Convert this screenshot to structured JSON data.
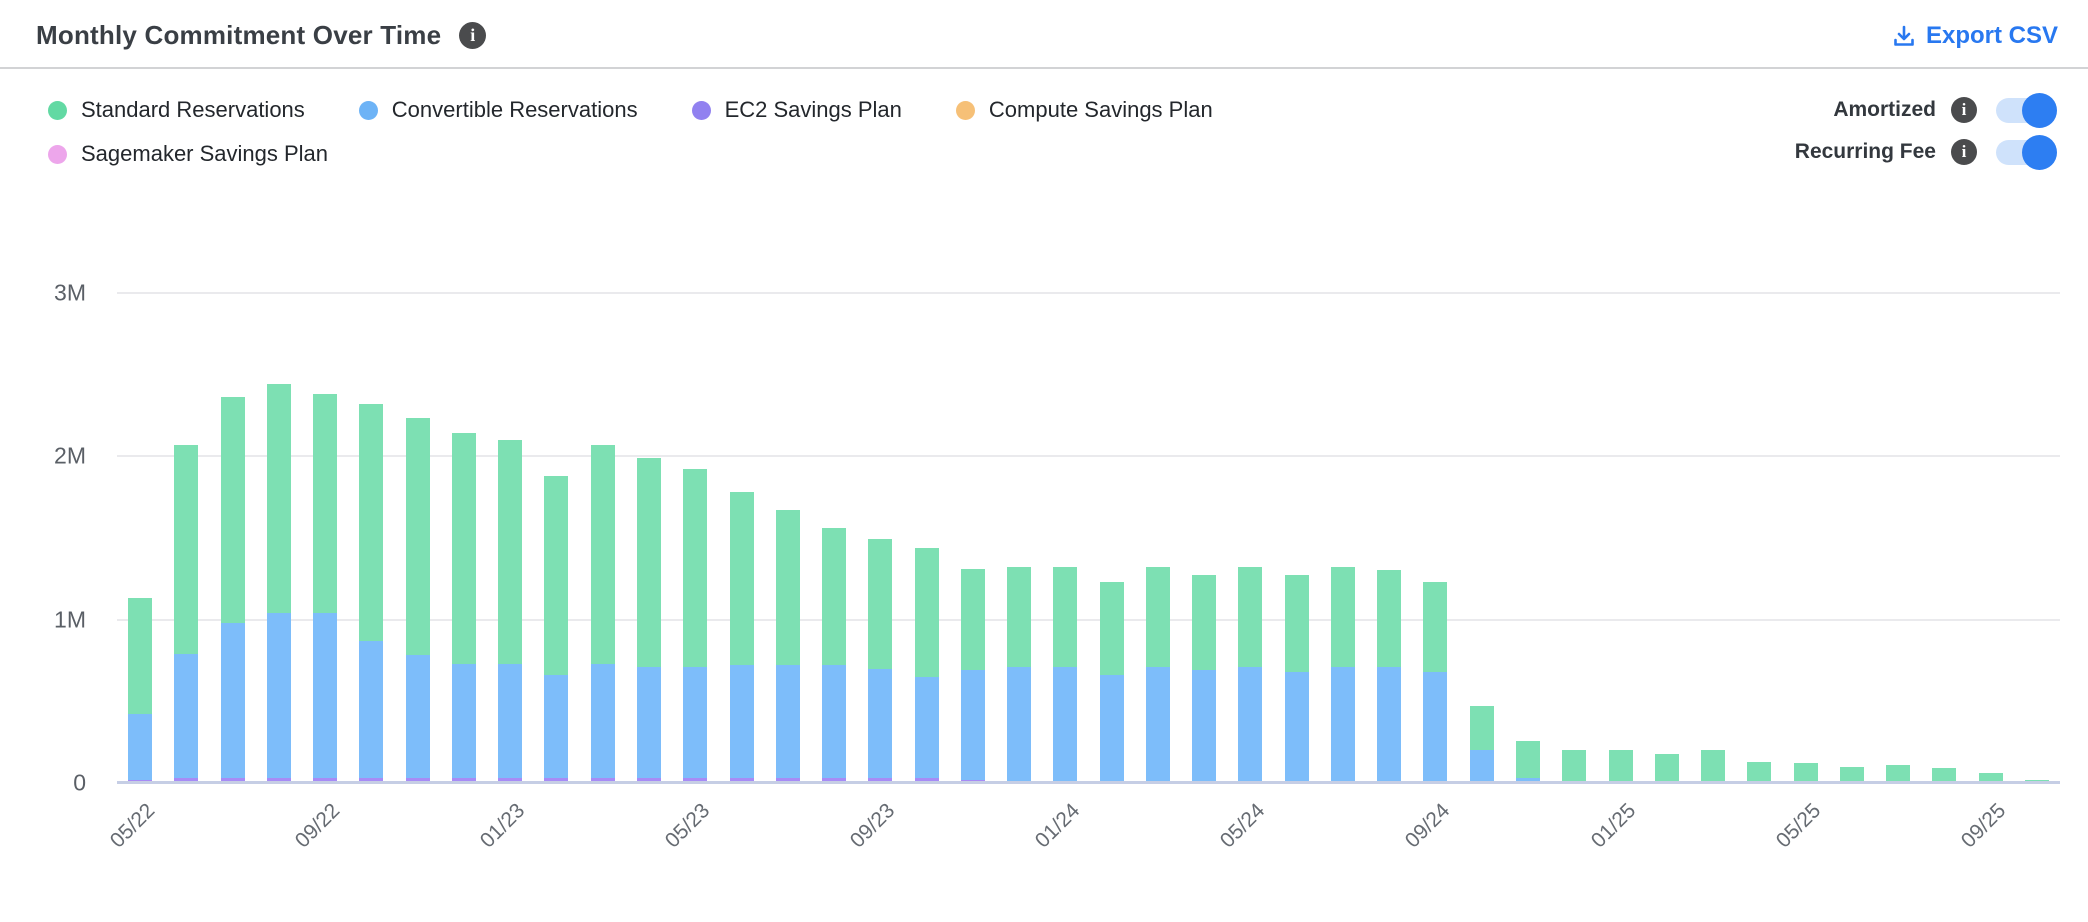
{
  "header": {
    "title": "Monthly Commitment Over Time",
    "export_label": "Export CSV"
  },
  "legend": {
    "items": [
      {
        "label": "Standard Reservations",
        "color": "#62d9a3",
        "row": 1
      },
      {
        "label": "Convertible Reservations",
        "color": "#6db3f6",
        "row": 1
      },
      {
        "label": "EC2 Savings Plan",
        "color": "#9181f0",
        "row": 1
      },
      {
        "label": "Compute Savings Plan",
        "color": "#f6c077",
        "row": 1
      },
      {
        "label": "Sagemaker Savings Plan",
        "color": "#eda6eb",
        "row": 2
      }
    ]
  },
  "toggles": [
    {
      "label": "Amortized",
      "on": true
    },
    {
      "label": "Recurring Fee",
      "on": true
    }
  ],
  "colors": {
    "accent_blue": "#2878f0",
    "toggle_track": "#cfe2fb",
    "toggle_knob": "#2d7ef2",
    "info_icon_bg": "#4a4b4d"
  },
  "chart_data": {
    "type": "bar",
    "stacked": true,
    "title": "Monthly Commitment Over Time",
    "values_in": "millions",
    "ylim": [
      0,
      3000000
    ],
    "grid": true,
    "legend_position": "top-left",
    "x": [
      "05/22",
      "06/22",
      "07/22",
      "08/22",
      "09/22",
      "10/22",
      "11/22",
      "12/22",
      "01/23",
      "02/23",
      "03/23",
      "04/23",
      "05/23",
      "06/23",
      "07/23",
      "08/23",
      "09/23",
      "10/23",
      "11/23",
      "12/23",
      "01/24",
      "02/24",
      "03/24",
      "04/24",
      "05/24",
      "06/24",
      "07/24",
      "08/24",
      "09/24",
      "10/24",
      "11/24",
      "12/24",
      "01/25",
      "02/25",
      "03/25",
      "04/25",
      "05/25",
      "06/25",
      "07/25",
      "08/25",
      "09/25",
      "10/25"
    ],
    "x_tick_every": 4,
    "x_tick_labels": [
      "05/22",
      "09/22",
      "01/23",
      "05/23",
      "09/23",
      "01/24",
      "05/24",
      "09/24",
      "01/25",
      "05/25",
      "09/25"
    ],
    "y_ticks": [
      {
        "label": "0",
        "value": 0
      },
      {
        "label": "1M",
        "value": 1
      },
      {
        "label": "2M",
        "value": 2
      },
      {
        "label": "3M",
        "value": 3
      }
    ],
    "series": [
      {
        "name": "Standard Reservations",
        "color": "#7de0b3",
        "stack_index": 3,
        "values": [
          0.71,
          1.28,
          1.38,
          1.4,
          1.34,
          1.45,
          1.45,
          1.41,
          1.37,
          1.22,
          1.34,
          1.28,
          1.21,
          1.06,
          0.95,
          0.84,
          0.79,
          0.79,
          0.62,
          0.61,
          0.61,
          0.57,
          0.61,
          0.58,
          0.61,
          0.59,
          0.61,
          0.59,
          0.55,
          0.27,
          0.23,
          0.2,
          0.2,
          0.18,
          0.2,
          0.13,
          0.12,
          0.1,
          0.11,
          0.09,
          0.06,
          0.02
        ]
      },
      {
        "name": "Convertible Reservations",
        "color": "#7dbdfa",
        "stack_index": 2,
        "values": [
          0.4,
          0.76,
          0.95,
          1.01,
          1.01,
          0.84,
          0.75,
          0.7,
          0.7,
          0.63,
          0.7,
          0.68,
          0.68,
          0.69,
          0.69,
          0.69,
          0.67,
          0.62,
          0.67,
          0.71,
          0.71,
          0.66,
          0.71,
          0.69,
          0.71,
          0.68,
          0.71,
          0.71,
          0.68,
          0.2,
          0.03,
          0,
          0,
          0,
          0,
          0,
          0,
          0,
          0,
          0,
          0,
          0
        ]
      },
      {
        "name": "EC2 Savings Plan",
        "color": "#a78bf6",
        "stack_index": 0,
        "values": [
          0.02,
          0.03,
          0.03,
          0.03,
          0.03,
          0.03,
          0.03,
          0.03,
          0.03,
          0.03,
          0.03,
          0.03,
          0.03,
          0.03,
          0.03,
          0.03,
          0.03,
          0.03,
          0.02,
          0,
          0,
          0,
          0,
          0,
          0,
          0,
          0,
          0,
          0,
          0,
          0,
          0,
          0,
          0,
          0,
          0,
          0,
          0,
          0,
          0,
          0,
          0
        ]
      },
      {
        "name": "Sagemaker Savings Plan",
        "color": "#eda6eb",
        "stack_index": 1,
        "values": [
          0,
          0,
          0,
          0,
          0,
          0,
          0,
          0,
          0,
          0,
          0,
          0,
          0,
          0,
          0,
          0,
          0,
          0,
          0,
          0,
          0,
          0,
          0,
          0,
          0,
          0,
          0,
          0,
          0,
          0,
          0,
          0,
          0,
          0,
          0,
          0,
          0,
          0,
          0,
          0,
          0,
          0
        ]
      },
      {
        "name": "Compute Savings Plan",
        "color": "#f6c077",
        "stack_index": 4,
        "values": [
          0,
          0,
          0,
          0,
          0,
          0,
          0,
          0,
          0,
          0,
          0,
          0,
          0,
          0,
          0,
          0,
          0,
          0,
          0,
          0,
          0,
          0,
          0,
          0,
          0,
          0,
          0,
          0,
          0,
          0,
          0,
          0,
          0,
          0,
          0,
          0,
          0,
          0,
          0,
          0,
          0,
          0
        ]
      }
    ]
  }
}
